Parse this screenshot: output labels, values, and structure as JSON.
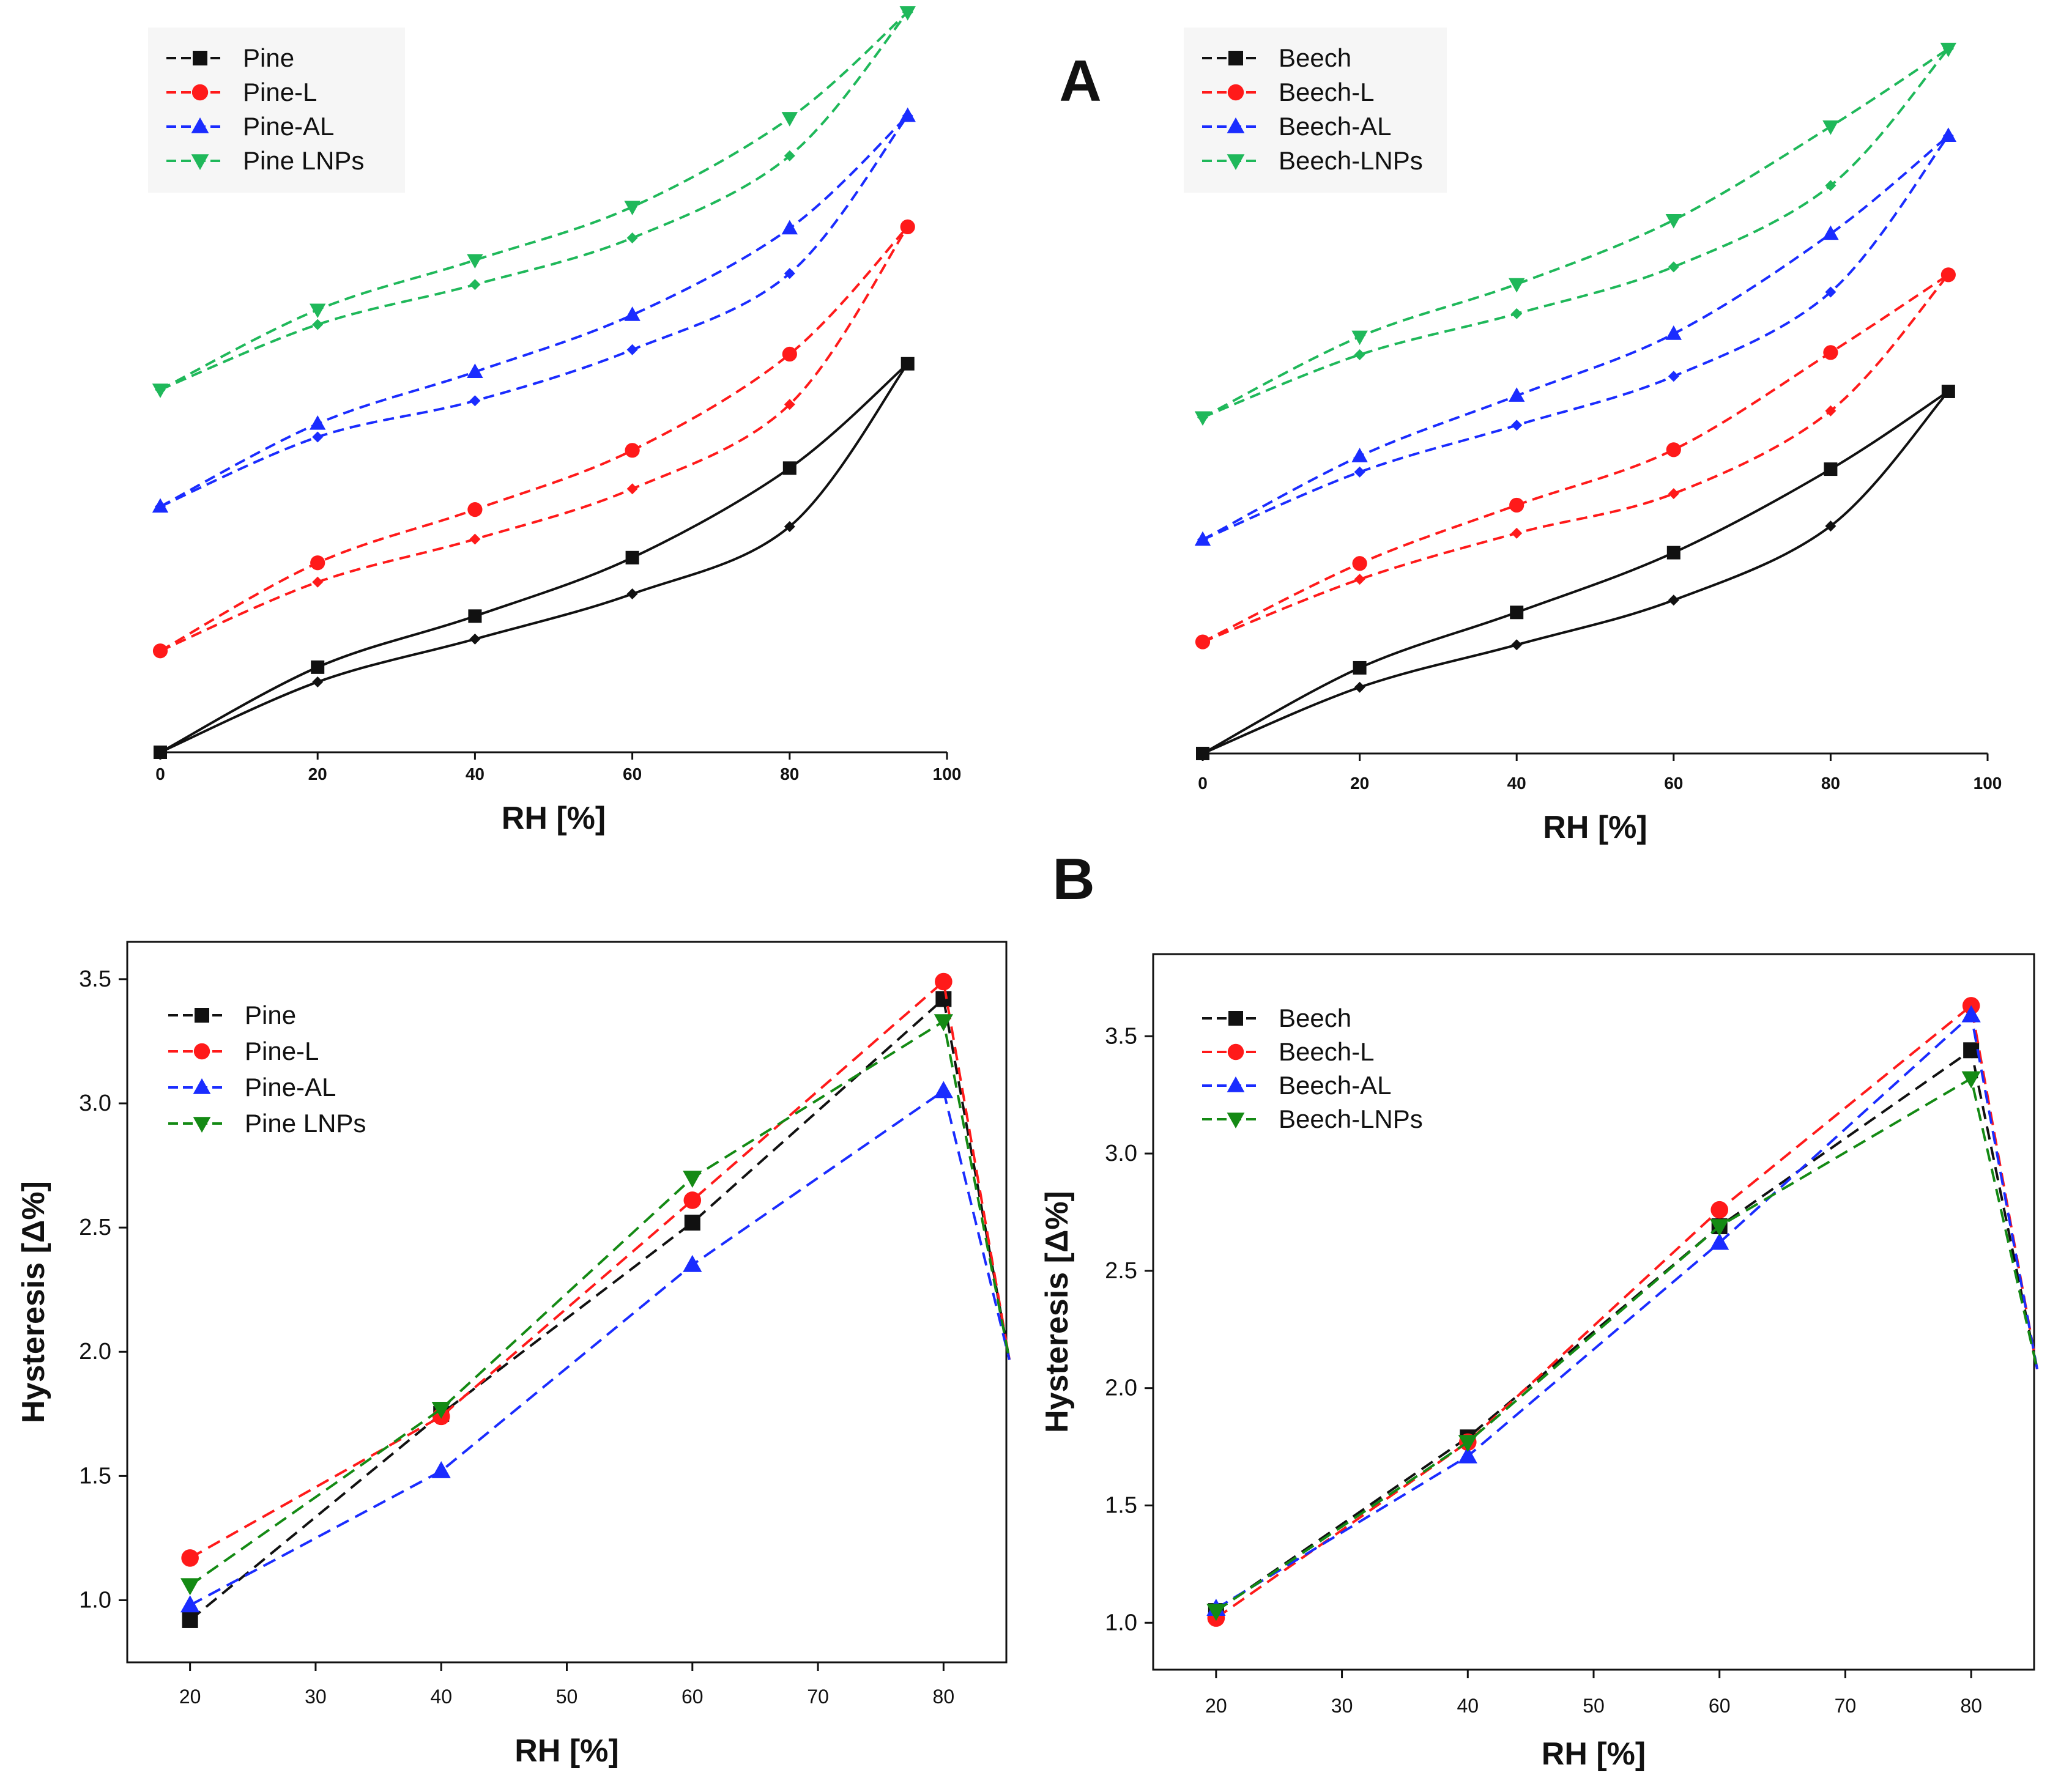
{
  "panel_labels": {
    "a": "A",
    "b": "B"
  },
  "colors": {
    "series_black": "#111111",
    "series_red": "#ff1a1a",
    "series_blue": "#1a2cff",
    "series_green_A": "#1fb85a",
    "series_green_B": "#148a14",
    "axis": "#111111",
    "background": "#ffffff",
    "legend_bg": "#f6f6f6"
  },
  "chart_data": [
    {
      "id": "A-pine",
      "type": "line",
      "title": "",
      "xlabel": "RH [%]",
      "ylabel": "",
      "xlim": [
        0,
        100
      ],
      "ylim": [
        0,
        100
      ],
      "x_ticks": [
        "0",
        "20",
        "40",
        "60",
        "80",
        "100"
      ],
      "y_axis_visible": false,
      "legend_position": "top-left",
      "note": "sorption isotherms; y values are in relative units (no y axis shown); each series has an adsorption and a desorption branch",
      "series": [
        {
          "name": "Pine",
          "color_key": "series_black",
          "line_style": "solid",
          "marker": "square",
          "adsorption": {
            "x": [
              0,
              20,
              40,
              60,
              80,
              95
            ],
            "y": [
              0,
              9.5,
              15.3,
              21.4,
              30.5,
              52.5
            ]
          },
          "desorption": {
            "x": [
              0,
              20,
              40,
              60,
              80,
              95
            ],
            "y": [
              0,
              11.5,
              18.4,
              26.3,
              38.4,
              52.5
            ]
          }
        },
        {
          "name": "Pine-L",
          "color_key": "series_red",
          "line_style": "dashed",
          "marker": "circle",
          "adsorption": {
            "x": [
              0,
              20,
              40,
              60,
              80,
              95
            ],
            "y": [
              13.7,
              23,
              28.8,
              35.6,
              47,
              71
            ]
          },
          "desorption": {
            "x": [
              0,
              20,
              40,
              60,
              80,
              95
            ],
            "y": [
              13.7,
              25.6,
              32.8,
              40.8,
              53.8,
              71
            ]
          }
        },
        {
          "name": "Pine-AL",
          "color_key": "series_blue",
          "line_style": "dashed",
          "marker": "triangle-up",
          "adsorption": {
            "x": [
              0,
              20,
              40,
              60,
              80,
              95
            ],
            "y": [
              33.2,
              42.6,
              47.5,
              54.4,
              64.7,
              86
            ]
          },
          "desorption": {
            "x": [
              0,
              20,
              40,
              60,
              80,
              95
            ],
            "y": [
              33.2,
              44.4,
              51.4,
              59.1,
              70.8,
              86
            ]
          }
        },
        {
          "name": "Pine LNPs",
          "color_key": "series_green_A",
          "line_style": "dashed",
          "marker": "triangle-down",
          "adsorption": {
            "x": [
              0,
              20,
              40,
              60,
              80,
              95
            ],
            "y": [
              49,
              57.8,
              63.2,
              69.5,
              80.6,
              100
            ]
          },
          "desorption": {
            "x": [
              0,
              20,
              40,
              60,
              80,
              95
            ],
            "y": [
              49,
              59.8,
              66.5,
              73.7,
              85.7,
              100
            ]
          }
        }
      ]
    },
    {
      "id": "A-beech",
      "type": "line",
      "title": "",
      "xlabel": "RH [%]",
      "ylabel": "",
      "xlim": [
        0,
        100
      ],
      "ylim": [
        0,
        100
      ],
      "x_ticks": [
        "0",
        "20",
        "40",
        "60",
        "80",
        "100"
      ],
      "y_axis_visible": false,
      "legend_position": "top-left",
      "note": "sorption isotherms; y values are in relative units (no y axis shown); each series has an adsorption and a desorption branch",
      "series": [
        {
          "name": "Beech",
          "color_key": "series_black",
          "line_style": "solid",
          "marker": "square",
          "adsorption": {
            "x": [
              0,
              20,
              40,
              60,
              80,
              95
            ],
            "y": [
              0,
              9.2,
              15.1,
              21.3,
              31.6,
              50.3
            ]
          },
          "desorption": {
            "x": [
              0,
              20,
              40,
              60,
              80,
              95
            ],
            "y": [
              0,
              11.9,
              19.6,
              27.9,
              39.5,
              50.3
            ]
          }
        },
        {
          "name": "Beech-L",
          "color_key": "series_red",
          "line_style": "dashed",
          "marker": "circle",
          "adsorption": {
            "x": [
              0,
              20,
              40,
              60,
              80,
              95
            ],
            "y": [
              15.5,
              24.2,
              30.6,
              36.1,
              47.6,
              66.5
            ]
          },
          "desorption": {
            "x": [
              0,
              20,
              40,
              60,
              80,
              95
            ],
            "y": [
              15.5,
              26.4,
              34.5,
              42.2,
              55.7,
              66.5
            ]
          }
        },
        {
          "name": "Beech-AL",
          "color_key": "series_blue",
          "line_style": "dashed",
          "marker": "triangle-up",
          "adsorption": {
            "x": [
              0,
              20,
              40,
              60,
              80,
              95
            ],
            "y": [
              29.7,
              39.1,
              45.6,
              52.4,
              64.1,
              85.8
            ]
          },
          "desorption": {
            "x": [
              0,
              20,
              40,
              60,
              80,
              95
            ],
            "y": [
              29.7,
              41.3,
              49.7,
              58.3,
              72.2,
              85.8
            ]
          }
        },
        {
          "name": "Beech-LNPs",
          "color_key": "series_green_A",
          "line_style": "dashed",
          "marker": "triangle-down",
          "adsorption": {
            "x": [
              0,
              20,
              40,
              60,
              80,
              95
            ],
            "y": [
              46.7,
              55.4,
              61.1,
              67.6,
              78.9,
              97.9
            ]
          },
          "desorption": {
            "x": [
              0,
              20,
              40,
              60,
              80,
              95
            ],
            "y": [
              46.7,
              57.9,
              65.2,
              74.1,
              87.1,
              97.9
            ]
          }
        }
      ]
    },
    {
      "id": "B-pine",
      "type": "line",
      "title": "",
      "xlabel": "RH [%]",
      "ylabel": "Hysteresis [Δ%]",
      "xlim": [
        15,
        85
      ],
      "ylim": [
        0.75,
        3.65
      ],
      "x_ticks": [
        "20",
        "30",
        "40",
        "50",
        "60",
        "70",
        "80"
      ],
      "y_ticks": [
        "1.0",
        "1.5",
        "2.0",
        "2.5",
        "3.0",
        "3.5"
      ],
      "legend_position": "top-left",
      "note": "lines drop off past RH 80 toward the right frame edge",
      "series": [
        {
          "name": "Pine",
          "color_key": "series_black",
          "marker": "square",
          "x": [
            20,
            40,
            60,
            80
          ],
          "y": [
            0.92,
            1.75,
            2.52,
            3.42
          ]
        },
        {
          "name": "Pine-L",
          "color_key": "series_red",
          "marker": "circle",
          "x": [
            20,
            40,
            60,
            80
          ],
          "y": [
            1.17,
            1.74,
            2.61,
            3.49
          ]
        },
        {
          "name": "Pine-AL",
          "color_key": "series_blue",
          "marker": "triangle-up",
          "x": [
            20,
            40,
            60,
            80
          ],
          "y": [
            0.98,
            1.52,
            2.35,
            3.05
          ]
        },
        {
          "name": "Pine LNPs",
          "color_key": "series_green_B",
          "marker": "triangle-down",
          "x": [
            20,
            40,
            60,
            80
          ],
          "y": [
            1.06,
            1.77,
            2.7,
            3.33
          ]
        }
      ]
    },
    {
      "id": "B-beech",
      "type": "line",
      "title": "",
      "xlabel": "RH [%]",
      "ylabel": "Hysteresis [Δ%]",
      "xlim": [
        15,
        85
      ],
      "ylim": [
        0.8,
        3.85
      ],
      "x_ticks": [
        "20",
        "30",
        "40",
        "50",
        "60",
        "70",
        "80"
      ],
      "y_ticks": [
        "1.0",
        "1.5",
        "2.0",
        "2.5",
        "3.0",
        "3.5"
      ],
      "legend_position": "top-left",
      "note": "lines drop off past RH 80 toward the right frame edge",
      "series": [
        {
          "name": "Beech",
          "color_key": "series_black",
          "marker": "square",
          "x": [
            20,
            40,
            60,
            80
          ],
          "y": [
            1.05,
            1.79,
            2.69,
            3.44
          ]
        },
        {
          "name": "Beech-L",
          "color_key": "series_red",
          "marker": "circle",
          "x": [
            20,
            40,
            60,
            80
          ],
          "y": [
            1.02,
            1.77,
            2.76,
            3.63
          ]
        },
        {
          "name": "Beech-AL",
          "color_key": "series_blue",
          "marker": "triangle-up",
          "x": [
            20,
            40,
            60,
            80
          ],
          "y": [
            1.06,
            1.71,
            2.62,
            3.59
          ]
        },
        {
          "name": "Beech-LNPs",
          "color_key": "series_green_B",
          "marker": "triangle-down",
          "x": [
            20,
            40,
            60,
            80
          ],
          "y": [
            1.05,
            1.77,
            2.69,
            3.32
          ]
        }
      ]
    }
  ]
}
